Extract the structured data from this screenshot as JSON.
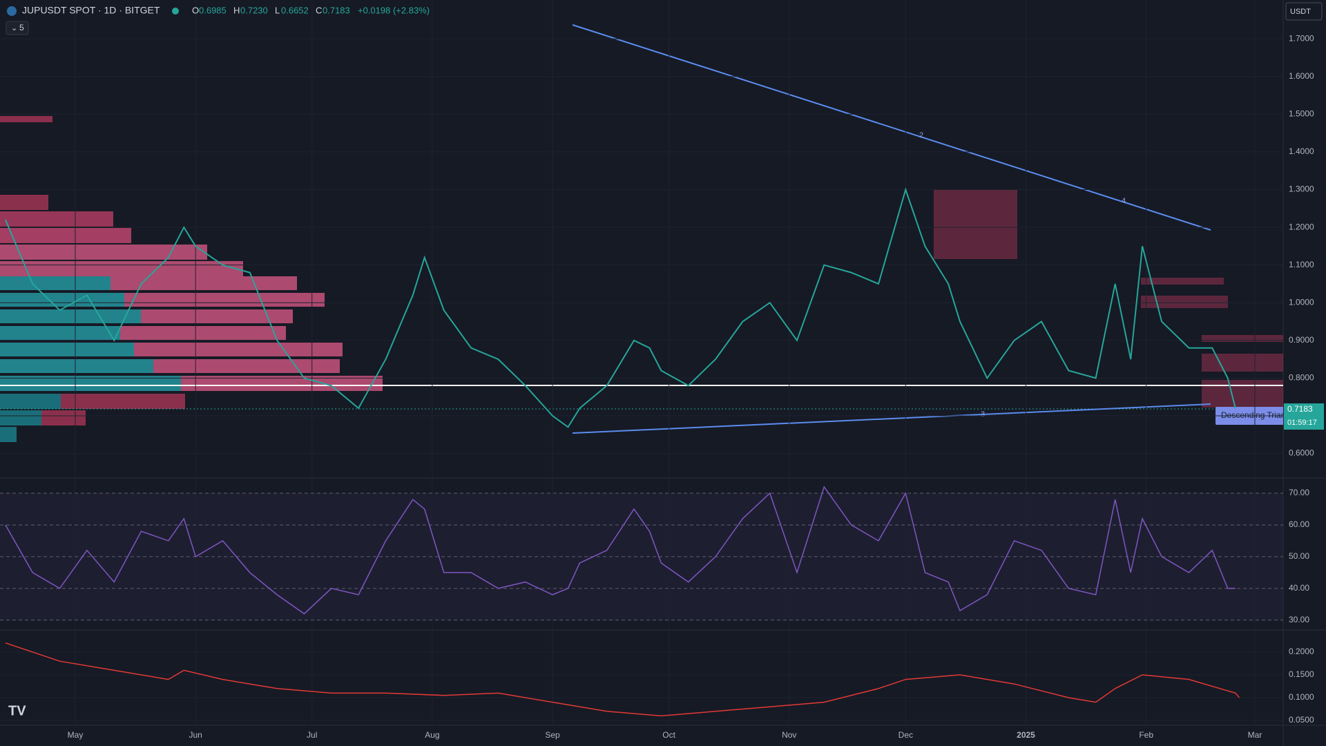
{
  "header": {
    "symbol": "JUPUSDT SPOT · 1D · BITGET",
    "open_label": "O",
    "open": "0.6985",
    "high_label": "H",
    "high": "0.7230",
    "low_label": "L",
    "low": "0.6652",
    "close_label": "C",
    "close": "0.7183",
    "change": "+0.0198 (+2.83%)",
    "indicators_count": "5",
    "currency": "USDT",
    "last_price": "0.7183",
    "countdown": "01:59:17",
    "pattern_label": "Descending Trian",
    "pivot_labels": [
      "2",
      "3",
      "4"
    ]
  },
  "chart_data": [
    {
      "type": "line",
      "color": "#26a69a",
      "x": [
        -18,
        -11,
        -4,
        3,
        10,
        17,
        24,
        28,
        31,
        38,
        45,
        52,
        59,
        66,
        73,
        80,
        87,
        90,
        95,
        102,
        109,
        116,
        123,
        127,
        130,
        137,
        144,
        148,
        151,
        158,
        165,
        172,
        179,
        186,
        193,
        200,
        207,
        214,
        219,
        225,
        228,
        235,
        242,
        249,
        256,
        263,
        268,
        272,
        275,
        280,
        287,
        293,
        297,
        299
      ],
      "values": [
        1.22,
        1.05,
        0.98,
        1.02,
        0.9,
        1.05,
        1.12,
        1.2,
        1.15,
        1.1,
        1.08,
        0.9,
        0.8,
        0.78,
        0.72,
        0.85,
        1.02,
        1.12,
        0.98,
        0.88,
        0.85,
        0.78,
        0.7,
        0.67,
        0.72,
        0.78,
        0.9,
        0.88,
        0.82,
        0.78,
        0.85,
        0.95,
        1.0,
        0.9,
        1.1,
        1.08,
        1.05,
        1.3,
        1.15,
        1.05,
        0.95,
        0.8,
        0.9,
        0.95,
        0.82,
        0.8,
        1.05,
        0.85,
        1.15,
        0.95,
        0.88,
        0.88,
        0.8,
        0.72
      ],
      "xlim": [
        -19.4,
        311.3
      ],
      "xticks": [
        {
          "value": 0,
          "label": "May"
        },
        {
          "value": 31,
          "label": "Jun"
        },
        {
          "value": 61,
          "label": "Jul"
        },
        {
          "value": 92,
          "label": "Aug"
        },
        {
          "value": 123,
          "label": "Sep"
        },
        {
          "value": 153,
          "label": "Oct"
        },
        {
          "value": 184,
          "label": "Nov"
        },
        {
          "value": 214,
          "label": "Dec"
        },
        {
          "value": 245,
          "label": "2025"
        },
        {
          "value": 276,
          "label": "Feb"
        },
        {
          "value": 304,
          "label": "Mar"
        }
      ],
      "ylim": [
        0.535,
        1.803
      ],
      "yticks": [
        {
          "value": 0.6,
          "label": "0.6000"
        },
        {
          "value": 0.7,
          "label": "0.7000"
        },
        {
          "value": 0.8,
          "label": "0.8000"
        },
        {
          "value": 0.9,
          "label": "0.9000"
        },
        {
          "value": 1.0,
          "label": "1.0000"
        },
        {
          "value": 1.1,
          "label": "1.1000"
        },
        {
          "value": 1.2,
          "label": "1.2000"
        },
        {
          "value": 1.3,
          "label": "1.3000"
        },
        {
          "value": 1.4,
          "label": "1.4000"
        },
        {
          "value": 1.5,
          "label": "1.5000"
        },
        {
          "value": 1.6,
          "label": "1.6000"
        },
        {
          "value": 1.7,
          "label": "1.7000"
        }
      ]
    },
    {
      "type": "line",
      "color": "#7e57c2",
      "x": [
        -18,
        -11,
        -4,
        3,
        10,
        17,
        24,
        28,
        31,
        38,
        45,
        52,
        59,
        66,
        73,
        80,
        87,
        90,
        95,
        102,
        109,
        116,
        123,
        127,
        130,
        137,
        144,
        148,
        151,
        158,
        165,
        172,
        179,
        186,
        193,
        200,
        207,
        214,
        219,
        225,
        228,
        235,
        242,
        249,
        256,
        263,
        268,
        272,
        275,
        280,
        287,
        293,
        297,
        299
      ],
      "values": [
        60,
        45,
        40,
        52,
        42,
        58,
        55,
        62,
        50,
        55,
        45,
        38,
        32,
        40,
        38,
        55,
        68,
        65,
        45,
        45,
        40,
        42,
        38,
        40,
        48,
        52,
        65,
        58,
        48,
        42,
        50,
        62,
        70,
        45,
        72,
        60,
        55,
        70,
        45,
        42,
        33,
        38,
        55,
        52,
        40,
        38,
        68,
        45,
        62,
        50,
        45,
        52,
        40,
        40
      ],
      "xlim": [
        -19.4,
        311.3
      ],
      "ylim": [
        26.9,
        74.8
      ],
      "yticks": [
        {
          "value": 30,
          "label": "30.00"
        },
        {
          "value": 40,
          "label": "40.00"
        },
        {
          "value": 50,
          "label": "50.00"
        },
        {
          "value": 60,
          "label": "60.00"
        },
        {
          "value": 70,
          "label": "70.00"
        }
      ]
    },
    {
      "type": "line",
      "color": "#e53935",
      "x": [
        -18,
        -4,
        10,
        24,
        28,
        38,
        52,
        66,
        80,
        95,
        109,
        123,
        137,
        151,
        165,
        179,
        193,
        207,
        214,
        228,
        242,
        256,
        263,
        268,
        275,
        287,
        299,
        300
      ],
      "values": [
        0.22,
        0.18,
        0.16,
        0.14,
        0.16,
        0.14,
        0.12,
        0.11,
        0.11,
        0.105,
        0.11,
        0.09,
        0.07,
        0.06,
        0.07,
        0.08,
        0.09,
        0.12,
        0.14,
        0.15,
        0.13,
        0.1,
        0.09,
        0.12,
        0.15,
        0.14,
        0.11,
        0.1
      ],
      "xlim": [
        -19.4,
        311.3
      ],
      "ylim": [
        0.0394,
        0.2485
      ],
      "yticks": [
        {
          "value": 0.05,
          "label": "0.0500"
        },
        {
          "value": 0.1,
          "label": "0.1000"
        },
        {
          "value": 0.15,
          "label": "0.1500"
        },
        {
          "value": 0.2,
          "label": "0.2000"
        }
      ]
    }
  ]
}
